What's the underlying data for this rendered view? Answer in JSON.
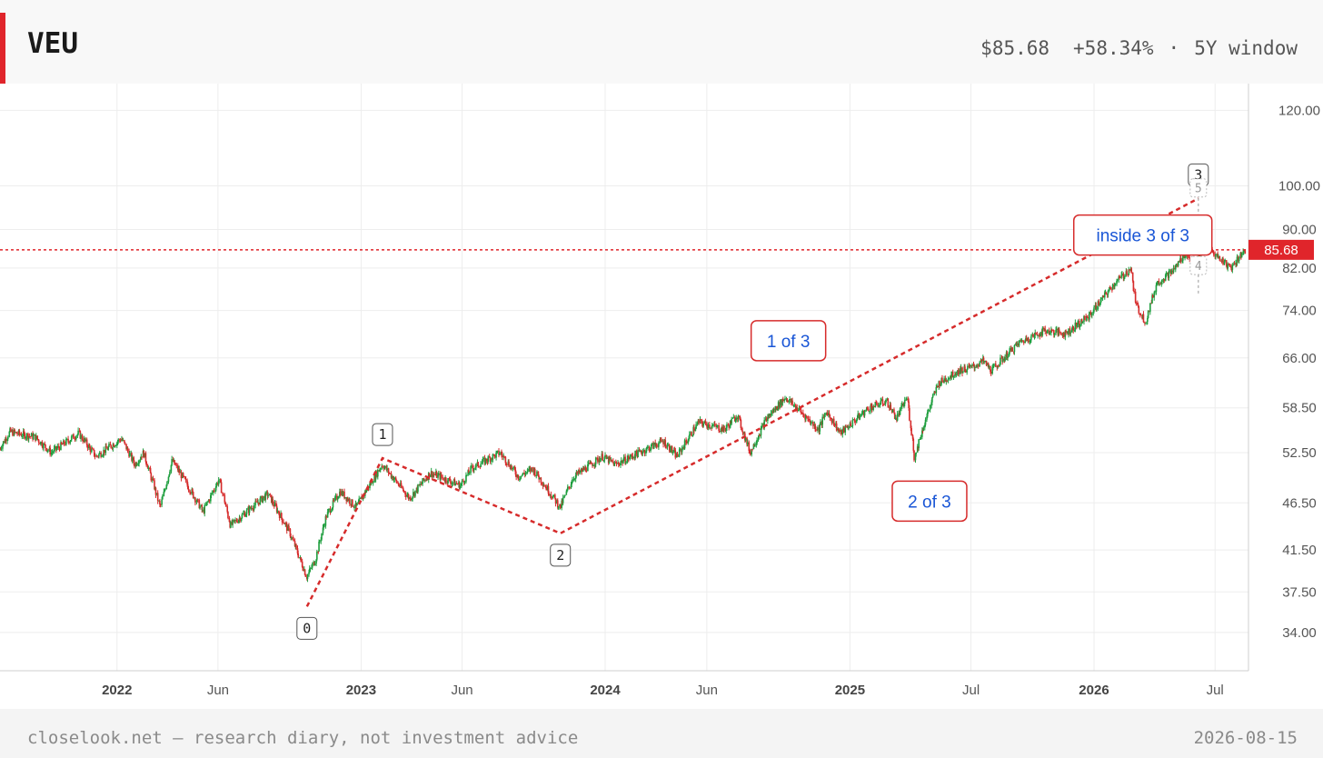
{
  "header": {
    "ticker": "VEU",
    "price": "$85.68",
    "change": "+58.34%",
    "separator": "·",
    "window": "5Y window",
    "accent_color": "#e0252b"
  },
  "footer": {
    "source": "closelook.net — research diary, not investment advice",
    "date": "2026-08-15"
  },
  "chart_data": {
    "type": "line",
    "title": "",
    "xlabel": "",
    "ylabel": "",
    "y_scale": "log",
    "ylim": [
      31,
      128
    ],
    "x_range": [
      "2021-07-10",
      "2026-08-20"
    ],
    "y_ticks": [
      "120.00",
      "100.00",
      "90.00",
      "82.00",
      "74.00",
      "66.00",
      "58.50",
      "52.50",
      "46.50",
      "41.50",
      "37.50",
      "34.00"
    ],
    "x_ticks": [
      {
        "label": "2022",
        "date": "2022-01-01",
        "bold": true
      },
      {
        "label": "Jun",
        "date": "2022-06-01",
        "bold": false
      },
      {
        "label": "2023",
        "date": "2023-01-01",
        "bold": true
      },
      {
        "label": "Jun",
        "date": "2023-06-01",
        "bold": false
      },
      {
        "label": "2024",
        "date": "2024-01-01",
        "bold": true
      },
      {
        "label": "Jun",
        "date": "2024-06-01",
        "bold": false
      },
      {
        "label": "2025",
        "date": "2025-01-01",
        "bold": true
      },
      {
        "label": "Jul",
        "date": "2025-07-01",
        "bold": false
      },
      {
        "label": "2026",
        "date": "2026-01-01",
        "bold": true
      },
      {
        "label": "Jul",
        "date": "2026-07-01",
        "bold": false
      }
    ],
    "grid": true,
    "up_color": "#1e9e3e",
    "down_color": "#d62b2b",
    "price_path": [
      [
        "2021-07-10",
        53.0
      ],
      [
        "2021-07-25",
        55.2
      ],
      [
        "2021-09-01",
        54.5
      ],
      [
        "2021-09-25",
        52.5
      ],
      [
        "2021-11-05",
        55.0
      ],
      [
        "2021-12-01",
        52.0
      ],
      [
        "2022-01-08",
        54.3
      ],
      [
        "2022-01-28",
        51.0
      ],
      [
        "2022-02-10",
        52.5
      ],
      [
        "2022-03-07",
        46.0
      ],
      [
        "2022-03-25",
        51.5
      ],
      [
        "2022-05-10",
        45.5
      ],
      [
        "2022-06-03",
        49.2
      ],
      [
        "2022-06-20",
        44.0
      ],
      [
        "2022-08-15",
        47.5
      ],
      [
        "2022-09-15",
        43.5
      ],
      [
        "2022-10-12",
        38.9
      ],
      [
        "2022-10-25",
        40.5
      ],
      [
        "2022-11-10",
        45.0
      ],
      [
        "2022-12-01",
        47.8
      ],
      [
        "2022-12-25",
        46.0
      ],
      [
        "2023-02-02",
        51.0
      ],
      [
        "2023-03-15",
        47.0
      ],
      [
        "2023-04-15",
        50.0
      ],
      [
        "2023-05-30",
        48.5
      ],
      [
        "2023-06-15",
        50.5
      ],
      [
        "2023-07-28",
        52.5
      ],
      [
        "2023-08-25",
        49.5
      ],
      [
        "2023-09-15",
        50.5
      ],
      [
        "2023-10-26",
        46.0
      ],
      [
        "2023-11-15",
        49.5
      ],
      [
        "2023-12-28",
        52.0
      ],
      [
        "2024-01-17",
        51.0
      ],
      [
        "2024-03-28",
        54.0
      ],
      [
        "2024-04-18",
        52.0
      ],
      [
        "2024-05-20",
        56.5
      ],
      [
        "2024-06-28",
        55.5
      ],
      [
        "2024-07-17",
        57.5
      ],
      [
        "2024-08-05",
        52.5
      ],
      [
        "2024-08-30",
        57.0
      ],
      [
        "2024-09-27",
        60.0
      ],
      [
        "2024-10-30",
        57.0
      ],
      [
        "2024-11-15",
        55.5
      ],
      [
        "2024-11-28",
        58.0
      ],
      [
        "2024-12-18",
        55.0
      ],
      [
        "2025-01-30",
        58.5
      ],
      [
        "2025-02-25",
        59.5
      ],
      [
        "2025-03-12",
        57.0
      ],
      [
        "2025-03-28",
        60.0
      ],
      [
        "2025-04-08",
        51.8
      ],
      [
        "2025-04-18",
        55.0
      ],
      [
        "2025-05-13",
        62.0
      ],
      [
        "2025-06-13",
        64.0
      ],
      [
        "2025-07-03",
        64.5
      ],
      [
        "2025-07-20",
        65.5
      ],
      [
        "2025-08-01",
        64.0
      ],
      [
        "2025-09-12",
        68.5
      ],
      [
        "2025-10-20",
        70.5
      ],
      [
        "2025-11-20",
        70.0
      ],
      [
        "2025-12-25",
        73.0
      ],
      [
        "2026-02-01",
        79.0
      ],
      [
        "2026-02-18",
        81.0
      ],
      [
        "2026-02-25",
        82.0
      ],
      [
        "2026-03-05",
        75.0
      ],
      [
        "2026-03-20",
        72.0
      ],
      [
        "2026-04-05",
        79.0
      ],
      [
        "2026-04-30",
        81.5
      ],
      [
        "2026-05-18",
        85.0
      ],
      [
        "2026-06-01",
        82.5
      ],
      [
        "2026-06-15",
        86.5
      ],
      [
        "2026-07-08",
        84.0
      ],
      [
        "2026-07-25",
        82.0
      ],
      [
        "2026-08-15",
        85.68
      ]
    ],
    "wave_count": [
      {
        "label": "0",
        "date": "2022-10-12",
        "value": 36.2,
        "tag_side": "below"
      },
      {
        "label": "1",
        "date": "2023-02-02",
        "value": 51.8,
        "tag_side": "above"
      },
      {
        "label": "2",
        "date": "2023-10-26",
        "value": 43.2,
        "tag_side": "below"
      },
      {
        "label": "3",
        "date": "2026-06-06",
        "value": 97.0,
        "tag_side": "above"
      }
    ],
    "sub_wave_count": [
      {
        "label": "4",
        "date": "2026-06-06",
        "value": 82.5
      },
      {
        "label": "5",
        "date": "2026-06-06",
        "value": 99.5
      }
    ],
    "projection_marker": {
      "date": "2026-06-06",
      "from": 77.0,
      "to": 101.0
    },
    "annotations": [
      {
        "text": "1 of 3",
        "date": "2024-10-01",
        "value": 68.8
      },
      {
        "text": "2 of 3",
        "date": "2025-04-30",
        "value": 46.7
      },
      {
        "text": "inside 3 of 3",
        "date": "2026-03-15",
        "value": 88.8
      }
    ],
    "last_price": {
      "value": 85.68,
      "label": "85.68",
      "color": "#e0252b"
    }
  }
}
